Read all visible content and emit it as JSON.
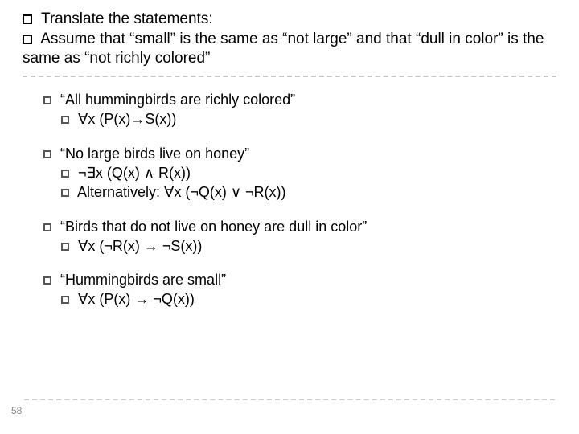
{
  "colors": {
    "background": "#ffffff",
    "text": "#000000",
    "dash": "#c9c9c9",
    "pagenum": "#8a8a8a"
  },
  "typography": {
    "body_fontsize_pt": 14,
    "pagenum_fontsize_pt": 9,
    "font_family": "Arial"
  },
  "top": {
    "line1": "Translate the statements:",
    "line2": "Assume that “small” is the same as “not large” and that “dull in color” is the same as “not richly colored”"
  },
  "groups": [
    {
      "title": "“All hummingbirds are richly colored”",
      "formulas": [
        "∀x (P(x)→S(x))"
      ]
    },
    {
      "title": "“No large birds live on honey”",
      "formulas": [
        "¬∃x (Q(x) ∧ R(x))",
        "Alternatively: ∀x (¬Q(x) ∨ ¬R(x))"
      ]
    },
    {
      "title": "“Birds that do not live on honey are dull in color”",
      "formulas": [
        "∀x (¬R(x) → ¬S(x))"
      ]
    },
    {
      "title": "“Hummingbirds are small”",
      "formulas": [
        "∀x (P(x) → ¬Q(x))"
      ]
    }
  ],
  "page_number": "58"
}
